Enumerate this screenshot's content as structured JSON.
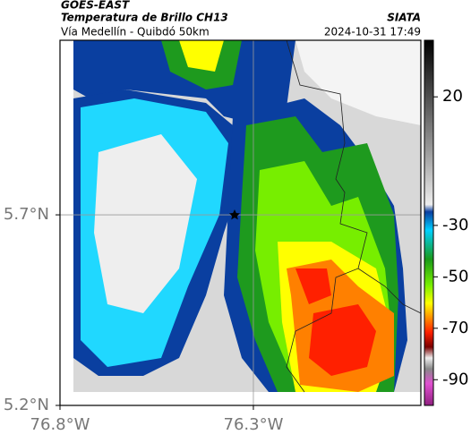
{
  "header": {
    "title": "GOES-EAST",
    "subtitle": "Temperatura de Brillo CH13",
    "route": "Vía Medellín - Quibdó 50km",
    "source": "SIATA",
    "timestamp": "2024-10-31 17:49"
  },
  "map": {
    "xlim": [
      -76.8,
      -75.867
    ],
    "ylim": [
      5.2,
      6.158
    ],
    "xticks": [
      {
        "value": -76.8,
        "label": "76.8°W"
      },
      {
        "value": -76.3,
        "label": "76.3°W"
      }
    ],
    "yticks": [
      {
        "value": 5.2,
        "label": "5.2°N"
      },
      {
        "value": 5.7,
        "label": "5.7°N"
      }
    ],
    "grid": true
  },
  "colorbar": {
    "ylim": [
      -100,
      42
    ],
    "yticks": [
      20,
      -30,
      -50,
      -70,
      -90
    ]
  }
}
